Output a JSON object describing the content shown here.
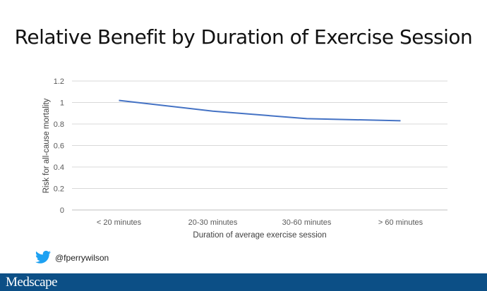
{
  "chart_data": {
    "type": "line",
    "title": "Relative Benefit by Duration of Exercise Session",
    "xlabel": "Duration of average exercise session",
    "ylabel": "Risk for all-cause mortality",
    "categories": [
      "< 20 minutes",
      "20-30 minutes",
      "30-60 minutes",
      "> 60 minutes"
    ],
    "series": [
      {
        "values": [
          1.02,
          0.92,
          0.85,
          0.83
        ],
        "color": "#4472c4"
      }
    ],
    "ylim": [
      0,
      1.2
    ],
    "yticks": [
      "0",
      "0.2",
      "0.4",
      "0.6",
      "0.8",
      "1",
      "1.2"
    ],
    "grid": true
  },
  "footer": {
    "twitter_handle": "@fperrywilson",
    "twitter_icon": "twitter-bird-icon",
    "brand": "Medscape",
    "brand_color": "#0c4f86"
  }
}
